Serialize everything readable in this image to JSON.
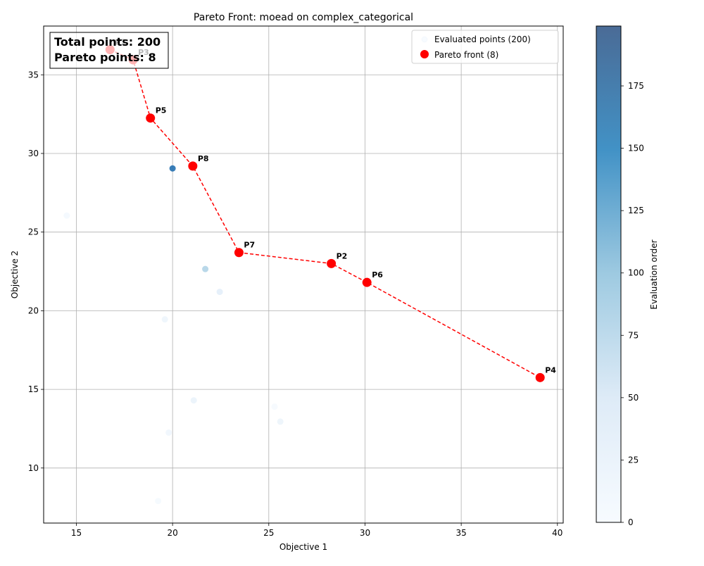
{
  "chart_data": {
    "type": "scatter",
    "title": "Pareto Front: moead on complex_categorical",
    "xlabel": "Objective 1",
    "ylabel": "Objective 2",
    "xlim": [
      13.3,
      40.3
    ],
    "ylim": [
      6.5,
      38.1
    ],
    "x_ticks": [
      15,
      20,
      25,
      30,
      35,
      40
    ],
    "y_ticks": [
      10,
      15,
      20,
      25,
      30,
      35
    ],
    "grid": true,
    "legend_position": "top-right",
    "annotation_box": [
      "Total points: 200",
      "Pareto points: 8"
    ],
    "colorbar": {
      "label": "Evaluation order",
      "range": [
        0,
        199
      ],
      "ticks": [
        0,
        25,
        50,
        75,
        100,
        125,
        150,
        175
      ],
      "colormap": "Blues"
    },
    "series": [
      {
        "name": "Evaluated points (200)",
        "points": [
          {
            "x": 20.0,
            "y": 29.05,
            "order": 175
          },
          {
            "x": 21.7,
            "y": 22.65,
            "order": 85
          },
          {
            "x": 22.45,
            "y": 21.2,
            "order": 40
          },
          {
            "x": 19.6,
            "y": 19.45,
            "order": 20
          },
          {
            "x": 21.1,
            "y": 14.3,
            "order": 25
          },
          {
            "x": 25.6,
            "y": 12.95,
            "order": 22
          },
          {
            "x": 19.8,
            "y": 12.25,
            "order": 15
          },
          {
            "x": 14.5,
            "y": 26.05,
            "order": 8
          },
          {
            "x": 19.25,
            "y": 7.9,
            "order": 6
          },
          {
            "x": 25.3,
            "y": 13.9,
            "order": 4
          },
          {
            "x": 17.3,
            "y": 37.1,
            "order": 12
          },
          {
            "x": 18.5,
            "y": 36.5,
            "order": 10
          }
        ]
      },
      {
        "name": "Pareto front (8)",
        "color": "#ff0000",
        "points": [
          {
            "label": "P1",
            "x": 16.75,
            "y": 36.6
          },
          {
            "label": "P3",
            "x": 17.95,
            "y": 35.95
          },
          {
            "label": "P5",
            "x": 18.85,
            "y": 32.25
          },
          {
            "label": "P8",
            "x": 21.05,
            "y": 29.2
          },
          {
            "label": "P7",
            "x": 23.45,
            "y": 23.7
          },
          {
            "label": "P2",
            "x": 28.25,
            "y": 23.0
          },
          {
            "label": "P6",
            "x": 30.1,
            "y": 21.8
          },
          {
            "label": "P4",
            "x": 39.1,
            "y": 15.75
          }
        ]
      }
    ]
  }
}
